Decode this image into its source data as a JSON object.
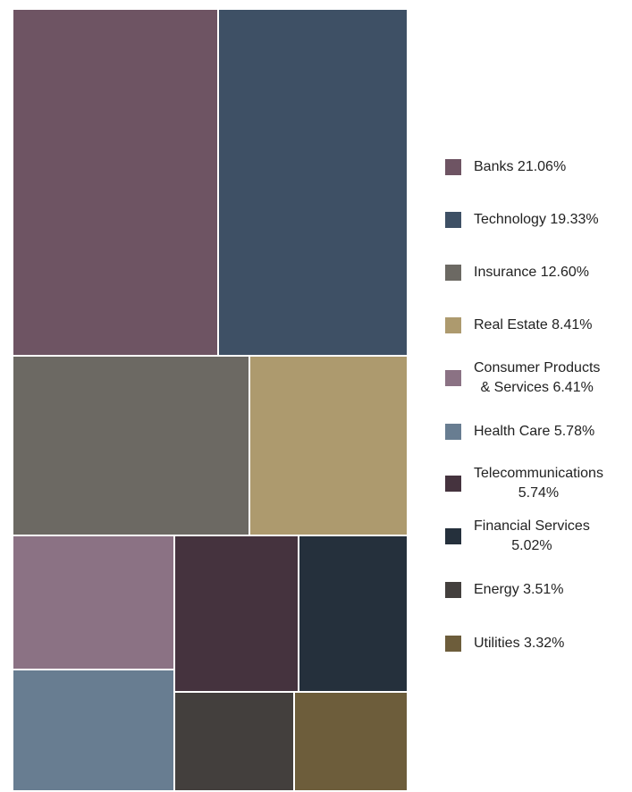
{
  "chart_data": {
    "type": "treemap",
    "series": [
      {
        "name": "Banks",
        "value": 21.06,
        "color": "#6e5463",
        "label_line1": "Banks 21.06%",
        "label_line2": ""
      },
      {
        "name": "Technology",
        "value": 19.33,
        "color": "#3e5065",
        "label_line1": "Technology 19.33%",
        "label_line2": ""
      },
      {
        "name": "Insurance",
        "value": 12.6,
        "color": "#6c6963",
        "label_line1": "Insurance 12.60%",
        "label_line2": ""
      },
      {
        "name": "Real Estate",
        "value": 8.41,
        "color": "#ad9a6e",
        "label_line1": "Real Estate  8.41%",
        "label_line2": ""
      },
      {
        "name": "Consumer Products & Services",
        "value": 6.41,
        "color": "#8b7284",
        "label_line1": "Consumer Products",
        "label_line2": "& Services 6.41%"
      },
      {
        "name": "Health Care",
        "value": 5.78,
        "color": "#687d91",
        "label_line1": "Health Care   5.78%",
        "label_line2": ""
      },
      {
        "name": "Telecommunications",
        "value": 5.74,
        "color": "#45333e",
        "label_line1": "Telecommunications",
        "label_line2": "5.74%"
      },
      {
        "name": "Financial Services",
        "value": 5.02,
        "color": "#25303c",
        "label_line1": "Financial Services",
        "label_line2": "5.02%"
      },
      {
        "name": "Energy",
        "value": 3.51,
        "color": "#433f3d",
        "label_line1": "Energy 3.51%",
        "label_line2": ""
      },
      {
        "name": "Utilities",
        "value": 3.32,
        "color": "#6d5d3b",
        "label_line1": "Utilities 3.32%",
        "label_line2": ""
      }
    ]
  }
}
